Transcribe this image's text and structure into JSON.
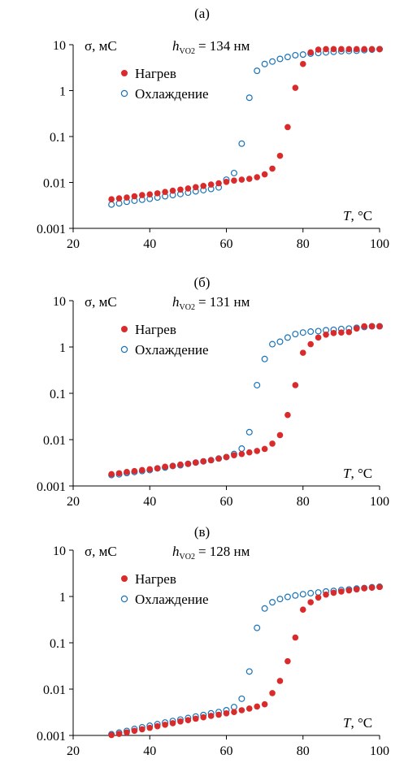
{
  "colors": {
    "heating": "#d92b2b",
    "cooling": "#1a73b8",
    "axis": "#000000"
  },
  "chart_data": [
    {
      "type": "scatter",
      "panel_label": "(а)",
      "y_label": "σ, мС",
      "h_label_main": "h",
      "h_label_sub": "VO2",
      "h_value": "= 134 нм",
      "x_axis_label_var": "T",
      "x_axis_label_unit": ", °C",
      "x_ticks": [
        "20",
        "40",
        "60",
        "80",
        "100"
      ],
      "y_ticks": [
        "10",
        "1",
        "0.1",
        "0.01",
        "0.001"
      ],
      "xlim": [
        20,
        100
      ],
      "ylim": [
        0.001,
        10
      ],
      "y_scale": "log",
      "legend_placement": "top-left",
      "series": [
        {
          "name": "Нагрев",
          "marker": "filled-circle",
          "x": [
            30,
            32,
            34,
            36,
            38,
            40,
            42,
            44,
            46,
            48,
            50,
            52,
            54,
            56,
            58,
            60,
            62,
            64,
            66,
            68,
            70,
            72,
            74,
            76,
            78,
            80,
            82,
            84,
            86,
            88,
            90,
            92,
            94,
            96,
            98,
            100
          ],
          "y": [
            0.0043,
            0.0045,
            0.0047,
            0.005,
            0.0053,
            0.0055,
            0.0058,
            0.0062,
            0.0066,
            0.007,
            0.0074,
            0.0079,
            0.0084,
            0.009,
            0.0096,
            0.0103,
            0.011,
            0.0115,
            0.012,
            0.013,
            0.015,
            0.02,
            0.038,
            0.16,
            1.15,
            3.8,
            6.8,
            7.8,
            8.0,
            8.0,
            8.0,
            8.0,
            8.0,
            8.0,
            8.0,
            8.0
          ]
        },
        {
          "name": "Охлаждение",
          "marker": "open-circle",
          "x": [
            30,
            32,
            34,
            36,
            38,
            40,
            42,
            44,
            46,
            48,
            50,
            52,
            54,
            56,
            58,
            60,
            62,
            64,
            66,
            68,
            70,
            72,
            74,
            76,
            78,
            80,
            82,
            84,
            86,
            88,
            90,
            92,
            94,
            96,
            98,
            100
          ],
          "y": [
            0.0033,
            0.0035,
            0.0038,
            0.004,
            0.0042,
            0.0044,
            0.0047,
            0.005,
            0.0053,
            0.0056,
            0.006,
            0.0064,
            0.0068,
            0.0072,
            0.0078,
            0.0115,
            0.016,
            0.07,
            0.7,
            2.7,
            3.8,
            4.3,
            4.9,
            5.4,
            5.9,
            6.1,
            6.4,
            6.6,
            6.8,
            7.0,
            7.2,
            7.3,
            7.4,
            7.6,
            7.8,
            8.0
          ]
        }
      ]
    },
    {
      "type": "scatter",
      "panel_label": "(б)",
      "y_label": "σ, мС",
      "h_label_main": "h",
      "h_label_sub": "VO2",
      "h_value": "= 131 нм",
      "x_axis_label_var": "T",
      "x_axis_label_unit": ", °C",
      "x_ticks": [
        "20",
        "40",
        "60",
        "80",
        "100"
      ],
      "y_ticks": [
        "10",
        "1",
        "0.1",
        "0.01",
        "0.001"
      ],
      "xlim": [
        20,
        100
      ],
      "ylim": [
        0.001,
        10
      ],
      "y_scale": "log",
      "legend_placement": "top-left",
      "series": [
        {
          "name": "Нагрев",
          "marker": "filled-circle",
          "x": [
            30,
            32,
            34,
            36,
            38,
            40,
            42,
            44,
            46,
            48,
            50,
            52,
            54,
            56,
            58,
            60,
            62,
            64,
            66,
            68,
            70,
            72,
            74,
            76,
            78,
            80,
            82,
            84,
            86,
            88,
            90,
            92,
            94,
            96,
            98,
            100
          ],
          "y": [
            0.0018,
            0.00188,
            0.002,
            0.0021,
            0.0022,
            0.0023,
            0.0024,
            0.0026,
            0.0027,
            0.0029,
            0.003,
            0.0032,
            0.0034,
            0.0036,
            0.0039,
            0.0042,
            0.0046,
            0.0049,
            0.0053,
            0.0057,
            0.0063,
            0.0082,
            0.0125,
            0.034,
            0.15,
            0.75,
            1.15,
            1.6,
            1.85,
            2.0,
            2.05,
            2.1,
            2.5,
            2.8,
            2.8,
            2.8
          ]
        },
        {
          "name": "Охлаждение",
          "marker": "open-circle",
          "x": [
            30,
            32,
            34,
            36,
            38,
            40,
            42,
            44,
            46,
            48,
            50,
            52,
            54,
            56,
            58,
            60,
            62,
            64,
            66,
            68,
            70,
            72,
            74,
            76,
            78,
            80,
            82,
            84,
            86,
            88,
            90,
            92,
            94,
            96,
            98,
            100
          ],
          "y": [
            0.00172,
            0.00178,
            0.0019,
            0.002,
            0.0021,
            0.0022,
            0.0024,
            0.0025,
            0.0027,
            0.0028,
            0.003,
            0.0032,
            0.0034,
            0.0036,
            0.0039,
            0.0042,
            0.0049,
            0.0064,
            0.0145,
            0.15,
            0.55,
            1.15,
            1.3,
            1.6,
            1.9,
            2.05,
            2.15,
            2.2,
            2.3,
            2.35,
            2.45,
            2.5,
            2.6,
            2.7,
            2.8,
            2.8
          ]
        }
      ]
    },
    {
      "type": "scatter",
      "panel_label": "(в)",
      "y_label": "σ, мС",
      "h_label_main": "h",
      "h_label_sub": "VO2",
      "h_value": "= 128 нм",
      "x_axis_label_var": "T",
      "x_axis_label_unit": ", °C",
      "x_ticks": [
        "20",
        "40",
        "60",
        "80",
        "100"
      ],
      "y_ticks": [
        "10",
        "1",
        "0.1",
        "0.01",
        "0.001"
      ],
      "xlim": [
        20,
        100
      ],
      "ylim": [
        0.001,
        10
      ],
      "y_scale": "log",
      "legend_placement": "top-left",
      "series": [
        {
          "name": "Нагрев",
          "marker": "filled-circle",
          "x": [
            30,
            32,
            34,
            36,
            38,
            40,
            42,
            44,
            46,
            48,
            50,
            52,
            54,
            56,
            58,
            60,
            62,
            64,
            66,
            68,
            70,
            72,
            74,
            76,
            78,
            80,
            82,
            84,
            86,
            88,
            90,
            92,
            94,
            96,
            98,
            100
          ],
          "y": [
            0.00102,
            0.00108,
            0.00116,
            0.00126,
            0.00136,
            0.00146,
            0.00158,
            0.0017,
            0.00184,
            0.002,
            0.00214,
            0.0023,
            0.00246,
            0.00264,
            0.0028,
            0.003,
            0.0032,
            0.0035,
            0.0038,
            0.0042,
            0.0047,
            0.0082,
            0.015,
            0.04,
            0.13,
            0.52,
            0.75,
            0.95,
            1.1,
            1.2,
            1.28,
            1.35,
            1.42,
            1.5,
            1.55,
            1.6
          ]
        },
        {
          "name": "Охлаждение",
          "marker": "open-circle",
          "x": [
            30,
            32,
            34,
            36,
            38,
            40,
            42,
            44,
            46,
            48,
            50,
            52,
            54,
            56,
            58,
            60,
            62,
            64,
            66,
            68,
            70,
            72,
            74,
            76,
            78,
            80,
            82,
            84,
            86,
            88,
            90,
            92,
            94,
            96,
            98,
            100
          ],
          "y": [
            0.00106,
            0.00115,
            0.00125,
            0.00138,
            0.0015,
            0.00162,
            0.00175,
            0.0019,
            0.00205,
            0.0022,
            0.00238,
            0.00256,
            0.00276,
            0.003,
            0.0032,
            0.0035,
            0.0041,
            0.0062,
            0.024,
            0.21,
            0.55,
            0.75,
            0.88,
            0.98,
            1.05,
            1.12,
            1.18,
            1.22,
            1.28,
            1.32,
            1.38,
            1.42,
            1.48,
            1.52,
            1.58,
            1.62
          ]
        }
      ]
    }
  ]
}
